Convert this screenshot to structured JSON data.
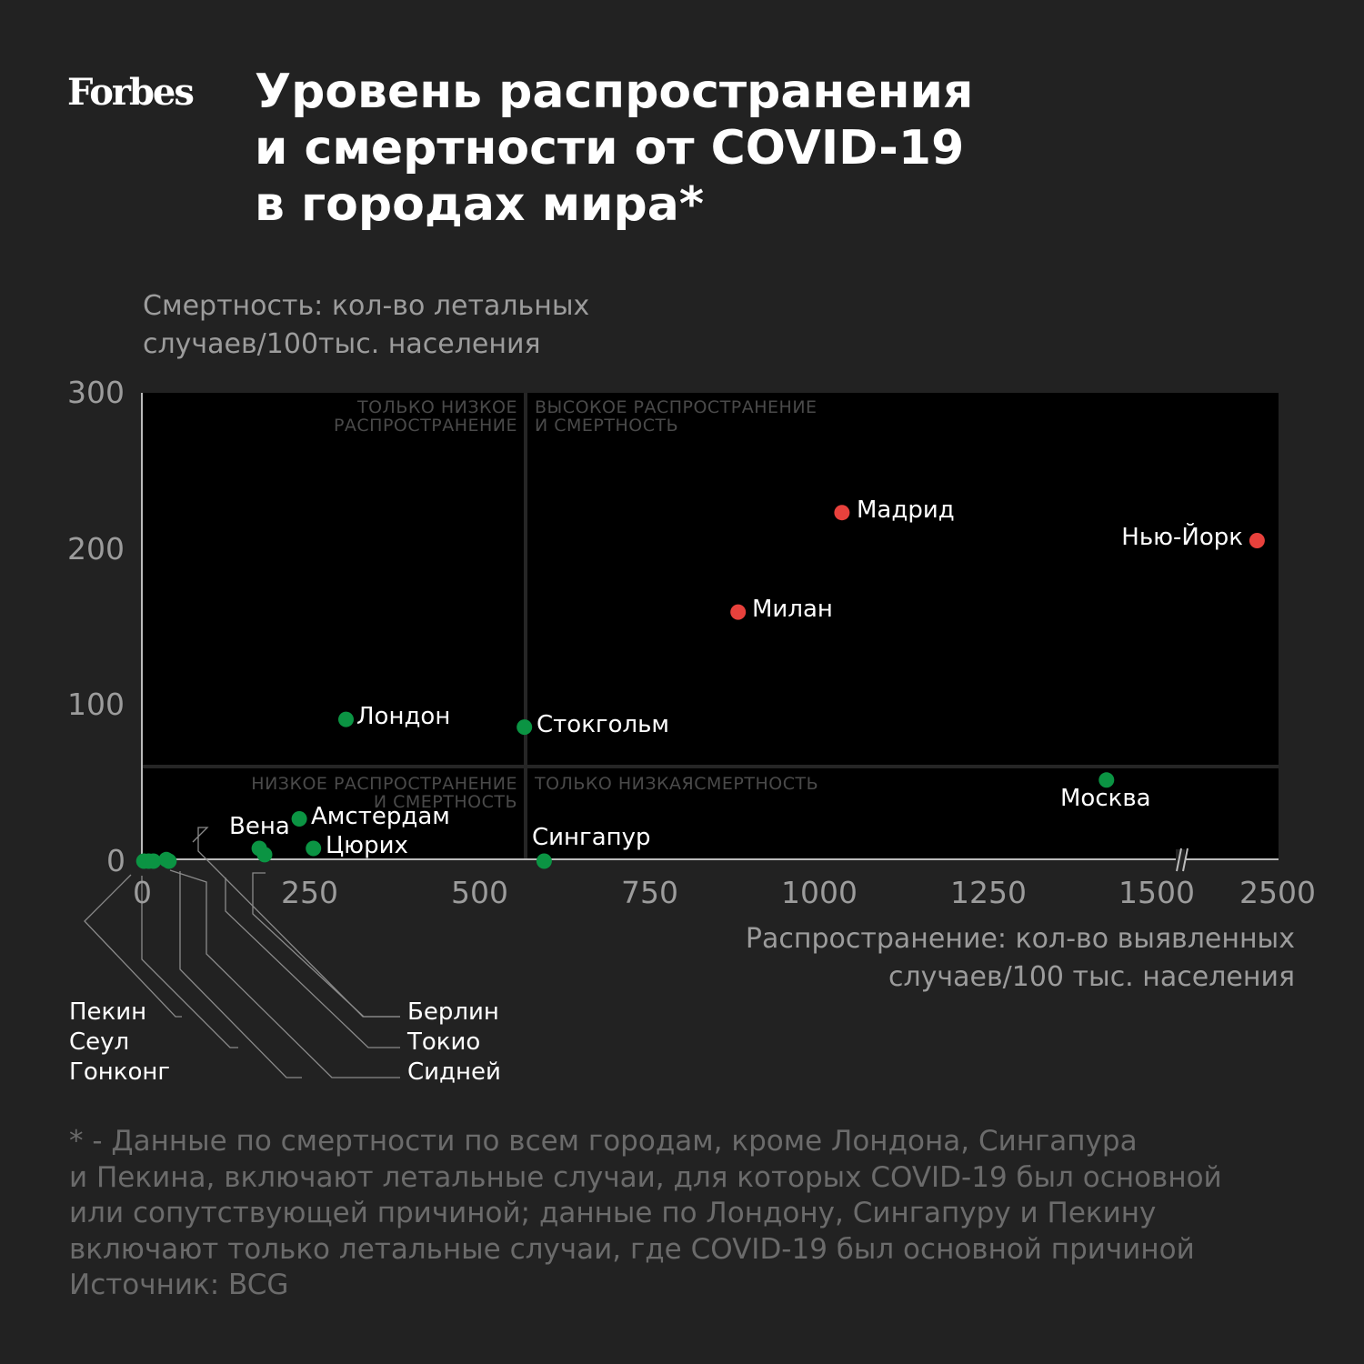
{
  "logo": "Forbes",
  "title": "Уровень распространения\nи смертности от COVID-19\nв городах мира*",
  "colors": {
    "high": "#e8413c",
    "low": "#0b9443",
    "plot_bg": "#000000",
    "page_bg": "#222222"
  },
  "chart_data": {
    "type": "scatter",
    "title": "Уровень распространения и смертности от COVID-19 в городах мира*",
    "ylabel": "Смертность: кол-во летальных\nслучаев/100тыс. населения",
    "xlabel": "Распространение: кол-во выявленных\nслучаев/100 тыс. населения",
    "xlim": [
      0,
      2500
    ],
    "ylim": [
      0,
      300
    ],
    "x_axis_break": [
      1500,
      2500
    ],
    "xticks": [
      "0",
      "250",
      "500",
      "750",
      "1000",
      "1250",
      "1500",
      "2500"
    ],
    "yticks": [
      "0",
      "100",
      "200",
      "300"
    ],
    "quadrant_split": {
      "x": 565,
      "y": 60
    },
    "quadrants": [
      "ТОЛЬКО НИЗКОЕ\nРАСПРОСТРАНЕНИЕ",
      "ВЫСОКОЕ РАСПРОСТРАНЕНИЕ\nИ СМЕРТНОСТЬ",
      "НИЗКОЕ РАСПРОСТРАНЕНИЕ\nИ СМЕРТНОСТЬ",
      "ТОЛЬКО НИЗКАЯСМЕРТНОСТЬ"
    ],
    "points": [
      {
        "name": "Мадрид",
        "x": 1032,
        "y": 223,
        "group": "high"
      },
      {
        "name": "Нью-Йорк",
        "x": 2320,
        "y": 205,
        "group": "high"
      },
      {
        "name": "Милан",
        "x": 879,
        "y": 159,
        "group": "high"
      },
      {
        "name": "Лондон",
        "x": 301,
        "y": 90,
        "group": "low"
      },
      {
        "name": "Стокгольм",
        "x": 564,
        "y": 85,
        "group": "low"
      },
      {
        "name": "Москва",
        "x": 1422,
        "y": 51,
        "group": "low"
      },
      {
        "name": "Амстердам",
        "x": 232,
        "y": 26,
        "group": "low"
      },
      {
        "name": "Цюрих",
        "x": 253,
        "y": 7,
        "group": "low"
      },
      {
        "name": "Вена",
        "x": 173,
        "y": 7,
        "group": "low"
      },
      {
        "name": "Берлин",
        "x": 181,
        "y": 3,
        "group": "low"
      },
      {
        "name": "Сингапур",
        "x": 593,
        "y": 0,
        "group": "low"
      },
      {
        "name": "Пекин",
        "x": 3,
        "y": 0,
        "group": "low"
      },
      {
        "name": "Сеул",
        "x": 10,
        "y": 0,
        "group": "low"
      },
      {
        "name": "Гонконг",
        "x": 17,
        "y": 0,
        "group": "low"
      },
      {
        "name": "Токио",
        "x": 36,
        "y": 1,
        "group": "low"
      },
      {
        "name": "Сидней",
        "x": 40,
        "y": 0,
        "group": "low"
      }
    ]
  },
  "footnote": "* - Данные по смертности по всем городам, кроме Лондона, Сингапура\nи Пекина, включают летальные случаи, для которых COVID-19 был основной\nили сопутствующей причиной; данные по Лондону, Сингапуру и Пекину\nвключают только летальные случаи, где COVID-19 был основной причиной\nИсточник: BCG"
}
